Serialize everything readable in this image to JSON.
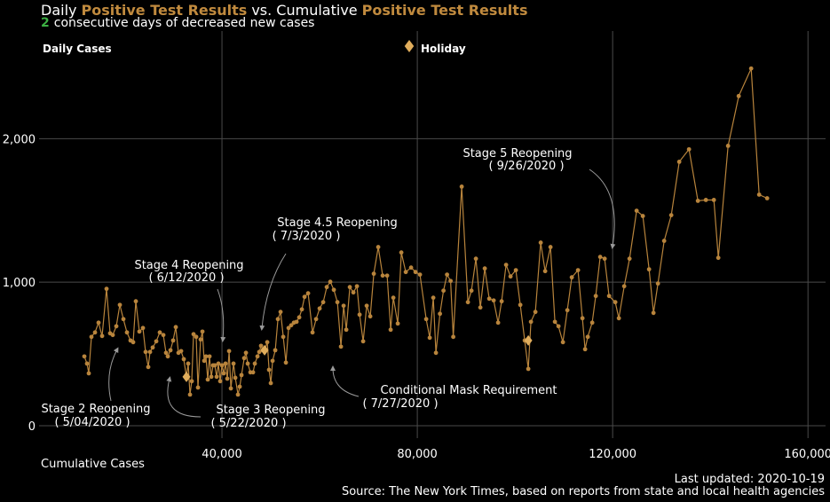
{
  "chart_data": {
    "type": "line",
    "title_parts": [
      "Daily",
      "Positive Test Results",
      "vs. Cumulative",
      "Positive Test Results"
    ],
    "streak": 2,
    "subtitle": "consecutive days of decreased new cases",
    "y_label": "Daily Cases",
    "x_label": "Cumulative Cases",
    "updated": "Last updated: 2020-10-19",
    "source": "Source: The New York Times, based on reports from state and local health agencies",
    "xlim": [
      0,
      163600
    ],
    "ylim": [
      0,
      2750
    ],
    "xticks": [
      {
        "value": 40000,
        "label": "40,000"
      },
      {
        "value": 80000,
        "label": "80,000"
      },
      {
        "value": 120000,
        "label": "120,000"
      },
      {
        "value": 160000,
        "label": "160,000"
      }
    ],
    "yticks": [
      0,
      {
        "value": 1000,
        "label": "1,000"
      },
      {
        "value": 2000,
        "label": "2,000"
      }
    ],
    "grid": true,
    "series": [
      {
        "color": "#b8843c",
        "x": [
          11818,
          12364,
          12727,
          13273,
          14000,
          14727,
          15455,
          16364,
          17091,
          17636,
          18364,
          19091,
          19818,
          20545,
          21273,
          21818,
          22364,
          23091,
          23818,
          24364,
          24909,
          25273,
          25818,
          26545,
          27273,
          28000,
          28545,
          28909,
          29455,
          30000,
          30545,
          31091,
          31636,
          32182,
          32727,
          33091,
          33455,
          33818,
          34182,
          34727,
          35091,
          35636,
          36000,
          36364,
          36727,
          37091,
          37455,
          37818,
          38182,
          38545,
          38909,
          39273,
          39636,
          40000,
          40364,
          40727,
          41091,
          41455,
          41818,
          42364,
          42727,
          43273,
          43636,
          44000,
          44545,
          44909,
          45273,
          45818,
          46364,
          46727,
          47273,
          47636,
          48000,
          48364,
          48727,
          49273,
          49636,
          50000,
          50364,
          50909,
          51455,
          52000,
          52545,
          53091,
          53636,
          54182,
          54727,
          55273,
          55818,
          56364,
          56909,
          57636,
          58545,
          59273,
          60000,
          60727,
          61455,
          62182,
          62909,
          63636,
          64364,
          64909,
          65455,
          66182,
          66909,
          67636,
          68182,
          68909,
          69636,
          70364,
          71091,
          72000,
          72909,
          73818,
          74545,
          75091,
          76000,
          76727,
          77636,
          78727,
          79636,
          80545,
          81818,
          82545,
          83273,
          83818,
          84636,
          85364,
          86091,
          86818,
          87364,
          89091,
          90364,
          91091,
          92000,
          92909,
          93818,
          94727,
          95636,
          96545,
          97273,
          98182,
          99091,
          100182,
          101091,
          102000,
          102727,
          103273,
          104182,
          105273,
          106182,
          107273,
          108182,
          108909,
          109818,
          110727,
          111636,
          112909,
          113818,
          114364,
          114909,
          115818,
          116545,
          117455,
          118364,
          119273,
          120545,
          121273,
          122364,
          123455,
          124909,
          126182,
          127455,
          128364,
          129273,
          130545,
          132000,
          133636,
          135636,
          137455,
          139091,
          140727,
          141636,
          143636,
          145818,
          148364,
          150000,
          151636
        ],
        "values": [
          483,
          433,
          365,
          619,
          650,
          718,
          625,
          954,
          644,
          632,
          693,
          842,
          743,
          650,
          594,
          582,
          867,
          656,
          681,
          514,
          409,
          514,
          545,
          588,
          650,
          632,
          508,
          483,
          526,
          594,
          687,
          508,
          520,
          464,
          341,
          433,
          217,
          310,
          638,
          619,
          266,
          601,
          656,
          452,
          483,
          322,
          483,
          341,
          421,
          421,
          341,
          433,
          310,
          421,
          365,
          433,
          328,
          520,
          260,
          433,
          334,
          217,
          272,
          353,
          471,
          508,
          433,
          372,
          372,
          433,
          483,
          514,
          557,
          526,
          526,
          582,
          390,
          297,
          452,
          526,
          743,
          793,
          619,
          440,
          681,
          700,
          718,
          724,
          755,
          811,
          898,
          923,
          650,
          743,
          817,
          861,
          966,
          1003,
          947,
          861,
          551,
          836,
          669,
          966,
          929,
          972,
          774,
          588,
          836,
          762,
          1059,
          1245,
          1046,
          1046,
          669,
          892,
          712,
          1207,
          1071,
          1102,
          1071,
          1053,
          743,
          613,
          892,
          508,
          780,
          941,
          1053,
          1009,
          619,
          1666,
          861,
          941,
          1164,
          824,
          1096,
          885,
          873,
          718,
          867,
          1121,
          1040,
          1084,
          842,
          594,
          396,
          724,
          793,
          1276,
          1077,
          1245,
          724,
          693,
          582,
          805,
          1034,
          1084,
          749,
          533,
          619,
          718,
          904,
          1176,
          1164,
          904,
          861,
          749,
          972,
          1164,
          1498,
          1461,
          1090,
          786,
          991,
          1288,
          1467,
          1839,
          1926,
          1567,
          1573,
          1573,
          1170,
          1950,
          2297,
          2489,
          1610,
          1585
        ]
      },
      {
        "name": "Holiday",
        "color": "#e0ad5c",
        "x": [
          32727,
          48727,
          102727
        ],
        "values": [
          341,
          526,
          594
        ]
      }
    ],
    "annotations": [
      {
        "label": "Stage 2 Reopening",
        "date": "( 5/04/2020 )"
      },
      {
        "label": "Stage 3 Reopening",
        "date": "( 5/22/2020 )"
      },
      {
        "label": "Stage 4 Reopening",
        "date": "( 6/12/2020 )"
      },
      {
        "label": "Stage 4.5 Reopening",
        "date": "( 7/3/2020 )"
      },
      {
        "label": "Conditional Mask Requirement",
        "date": "( 7/27/2020 )"
      },
      {
        "label": "Stage 5 Reopening",
        "date": "( 9/26/2020 )"
      }
    ]
  }
}
